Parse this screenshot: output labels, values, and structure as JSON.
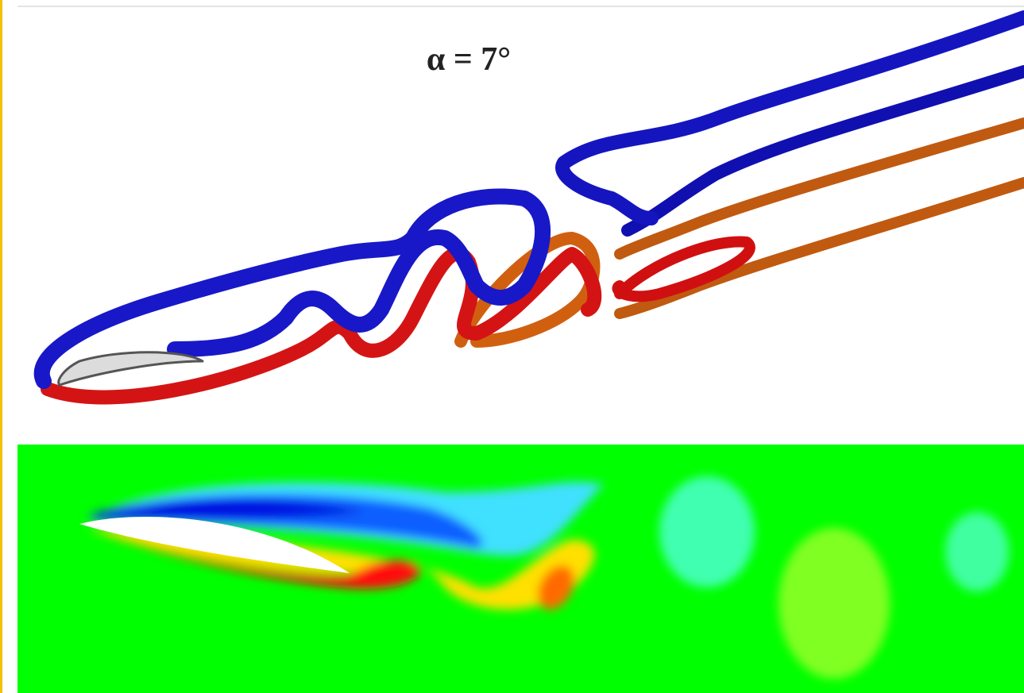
{
  "title": "α = 7°"
}
